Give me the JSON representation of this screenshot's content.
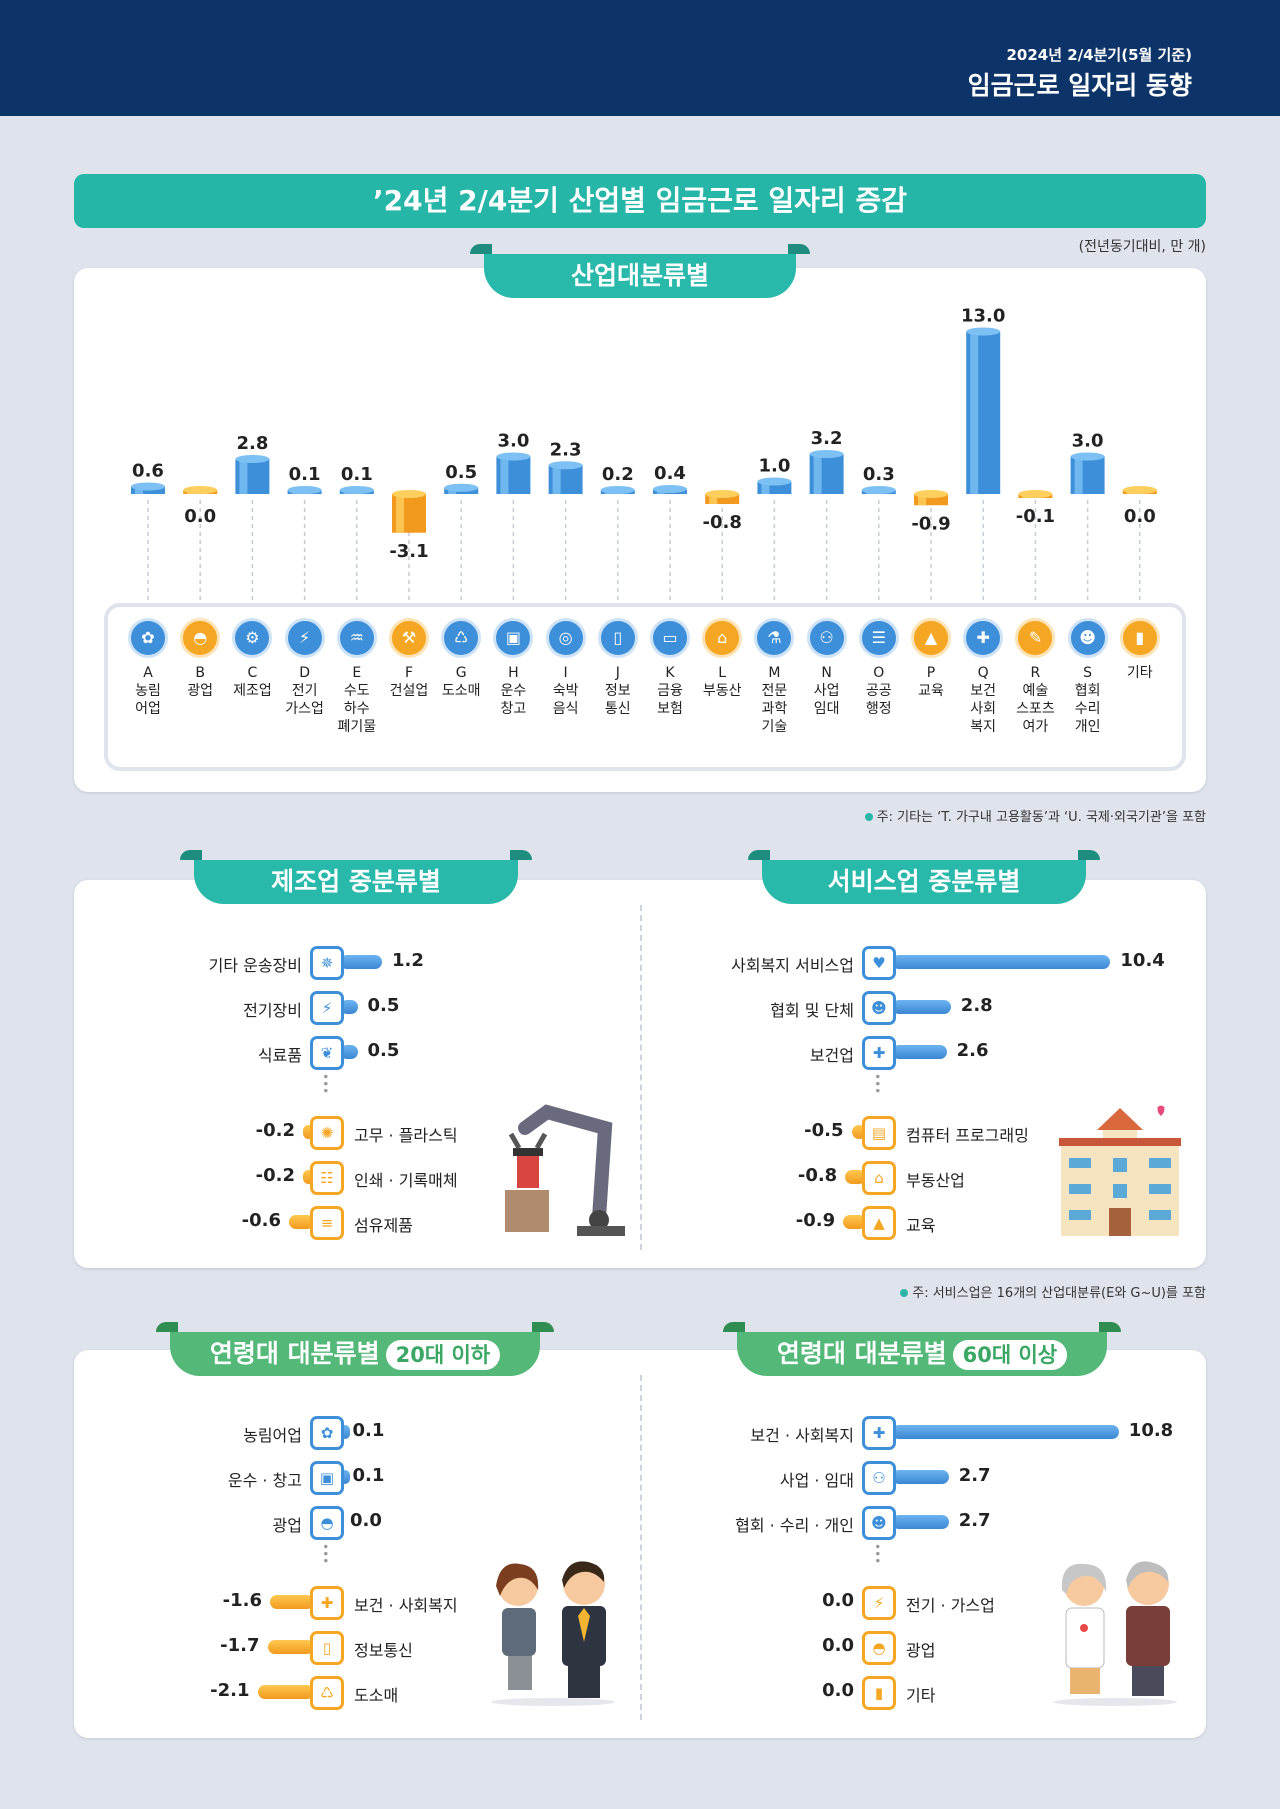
{
  "header": {
    "sub": "2024년 2/4분기(5월 기준)",
    "title": "임금근로 일자리 동향"
  },
  "main_title": "’24년 2/4분기 산업별 임금근로 일자리 증감",
  "unit_note": "(전년동기대비, 만 개)",
  "section1": {
    "tab": "산업대분류별",
    "note": "주: 기타는 ‘T. 가구내 고용활동’과 ‘U. 국제·외국기관’을 포함"
  },
  "chart_data": {
    "type": "bar",
    "title": "산업대분류별",
    "codes": [
      "A",
      "B",
      "C",
      "D",
      "E",
      "F",
      "G",
      "H",
      "I",
      "J",
      "K",
      "L",
      "M",
      "N",
      "O",
      "P",
      "Q",
      "R",
      "S",
      ""
    ],
    "categories": [
      "농림어업",
      "광업",
      "제조업",
      "전기가스업",
      "수도하수폐기물",
      "건설업",
      "도소매",
      "운수창고",
      "숙박음식",
      "정보통신",
      "금융보험",
      "부동산",
      "전문과학기술",
      "사업임대",
      "공공행정",
      "교육",
      "보건사회복지",
      "예술스포츠여가",
      "협회수리개인",
      "기타"
    ],
    "category_lines": [
      [
        "농림",
        "어업"
      ],
      [
        "광업"
      ],
      [
        "제조업"
      ],
      [
        "전기",
        "가스업"
      ],
      [
        "수도",
        "하수",
        "폐기물"
      ],
      [
        "건설업"
      ],
      [
        "도소매"
      ],
      [
        "운수",
        "창고"
      ],
      [
        "숙박",
        "음식"
      ],
      [
        "정보",
        "통신"
      ],
      [
        "금융",
        "보험"
      ],
      [
        "부동산"
      ],
      [
        "전문",
        "과학",
        "기술"
      ],
      [
        "사업",
        "임대"
      ],
      [
        "공공",
        "행정"
      ],
      [
        "교육"
      ],
      [
        "보건",
        "사회",
        "복지"
      ],
      [
        "예술",
        "스포츠",
        "여가"
      ],
      [
        "협회",
        "수리",
        "개인"
      ],
      [
        "기타"
      ]
    ],
    "values": [
      0.6,
      0.0,
      2.8,
      0.1,
      0.1,
      -3.1,
      0.5,
      3.0,
      2.3,
      0.2,
      0.4,
      -0.8,
      1.0,
      3.2,
      0.3,
      -0.9,
      13.0,
      -0.1,
      3.0,
      0.0
    ],
    "value_labels": [
      "0.6",
      "0.0",
      "2.8",
      "0.1",
      "0.1",
      "-3.1",
      "0.5",
      "3.0",
      "2.3",
      "0.2",
      "0.4",
      "-0.8",
      "1.0",
      "3.2",
      "0.3",
      "-0.9",
      "13.0",
      "-0.1",
      "3.0",
      "0.0"
    ],
    "icons": [
      "wheat-icon",
      "helmet-icon",
      "gears-icon",
      "lightning-icon",
      "faucet-icon",
      "excavator-icon",
      "basket-icon",
      "truck-icon",
      "dish-icon",
      "phone-icon",
      "money-icon",
      "house-icon",
      "flask-icon",
      "people-icon",
      "document-icon",
      "graduation-cap-icon",
      "medical-kit-icon",
      "palette-icon",
      "group-icon",
      "door-icon"
    ],
    "colors": {
      "positive": "#3e8fd9",
      "zero_negative": "#f5a623"
    }
  },
  "manufacturing": {
    "tab": "제조업 중분류별",
    "top": [
      {
        "label": "기타 운송장비",
        "value": "1.2",
        "num": 1.2,
        "icon": "ship-wheel-icon"
      },
      {
        "label": "전기장비",
        "value": "0.5",
        "num": 0.5,
        "icon": "lightning-icon"
      },
      {
        "label": "식료품",
        "value": "0.5",
        "num": 0.5,
        "icon": "food-icon"
      }
    ],
    "bottom": [
      {
        "label": "고무 · 플라스틱",
        "value": "-0.2",
        "num": -0.2,
        "icon": "tire-icon"
      },
      {
        "label": "인쇄 · 기록매체",
        "value": "-0.2",
        "num": -0.2,
        "icon": "printout-icon"
      },
      {
        "label": "섬유제품",
        "value": "-0.6",
        "num": -0.6,
        "icon": "fabric-icon"
      }
    ]
  },
  "services": {
    "tab": "서비스업 중분류별",
    "top": [
      {
        "label": "사회복지 서비스업",
        "value": "10.4",
        "num": 10.4,
        "icon": "care-hand-icon"
      },
      {
        "label": "협회 및 단체",
        "value": "2.8",
        "num": 2.8,
        "icon": "group-icon"
      },
      {
        "label": "보건업",
        "value": "2.6",
        "num": 2.6,
        "icon": "cross-icon"
      }
    ],
    "bottom": [
      {
        "label": "컴퓨터 프로그래밍",
        "value": "-0.5",
        "num": -0.5,
        "icon": "computer-icon"
      },
      {
        "label": "부동산업",
        "value": "-0.8",
        "num": -0.8,
        "icon": "house-icon"
      },
      {
        "label": "교육",
        "value": "-0.9",
        "num": -0.9,
        "icon": "graduation-cap-icon"
      }
    ],
    "note": "주: 서비스업은 16개의 산업대분류(E와 G~U)를 포함"
  },
  "age20": {
    "tab": "연령대 대분류별",
    "badge": "20대 이하",
    "top": [
      {
        "label": "농림어업",
        "value": "0.1",
        "num": 0.1,
        "icon": "wheat-icon"
      },
      {
        "label": "운수 · 창고",
        "value": "0.1",
        "num": 0.1,
        "icon": "truck-icon"
      },
      {
        "label": "광업",
        "value": "0.0",
        "num": 0.0,
        "icon": "helmet-icon"
      }
    ],
    "bottom": [
      {
        "label": "보건 · 사회복지",
        "value": "-1.6",
        "num": -1.6,
        "icon": "medical-kit-icon"
      },
      {
        "label": "정보통신",
        "value": "-1.7",
        "num": -1.7,
        "icon": "phone-icon"
      },
      {
        "label": "도소매",
        "value": "-2.1",
        "num": -2.1,
        "icon": "basket-icon"
      }
    ]
  },
  "age60": {
    "tab": "연령대 대분류별",
    "badge": "60대 이상",
    "top": [
      {
        "label": "보건 · 사회복지",
        "value": "10.8",
        "num": 10.8,
        "icon": "medical-kit-icon"
      },
      {
        "label": "사업 · 임대",
        "value": "2.7",
        "num": 2.7,
        "icon": "people-icon"
      },
      {
        "label": "협회 · 수리 · 개인",
        "value": "2.7",
        "num": 2.7,
        "icon": "group-icon"
      }
    ],
    "bottom": [
      {
        "label": "전기 · 가스업",
        "value": "0.0",
        "num": 0.0,
        "icon": "lightning-icon"
      },
      {
        "label": "광업",
        "value": "0.0",
        "num": 0.0,
        "icon": "helmet-icon"
      },
      {
        "label": "기타",
        "value": "0.0",
        "num": 0.0,
        "icon": "door-icon"
      }
    ]
  }
}
